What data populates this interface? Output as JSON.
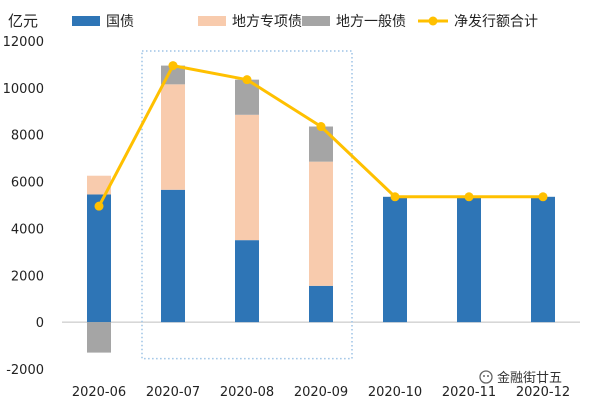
{
  "chart_data": {
    "type": "bar",
    "unit_label": "亿元",
    "categories": [
      "2020-06",
      "2020-07",
      "2020-08",
      "2020-09",
      "2020-10",
      "2020-11",
      "2020-12"
    ],
    "series": [
      {
        "name": "国债",
        "kind": "bar",
        "color": "#2E75B6",
        "values": [
          5450,
          5650,
          3500,
          1550,
          5350,
          5350,
          5350
        ]
      },
      {
        "name": "地方专项债",
        "kind": "bar",
        "color": "#F8CBAD",
        "values": [
          800,
          4500,
          5350,
          5300,
          0,
          0,
          0
        ]
      },
      {
        "name": "地方一般债",
        "kind": "bar",
        "color": "#A5A5A5",
        "values": [
          -1300,
          800,
          1500,
          1500,
          0,
          0,
          0
        ]
      },
      {
        "name": "净发行额合计",
        "kind": "line",
        "color": "#FFC000",
        "values": [
          4950,
          10950,
          10350,
          8350,
          5350,
          5350,
          5350
        ]
      }
    ],
    "yticks": [
      -2000,
      0,
      2000,
      4000,
      6000,
      8000,
      10000,
      12000
    ],
    "ylim": [
      -2000,
      12000
    ],
    "stacked": true,
    "legend_position": "top",
    "highlight": {
      "from": "2020-07",
      "to": "2020-09",
      "style": "dotted-box"
    }
  },
  "watermark": "金融街廿五"
}
